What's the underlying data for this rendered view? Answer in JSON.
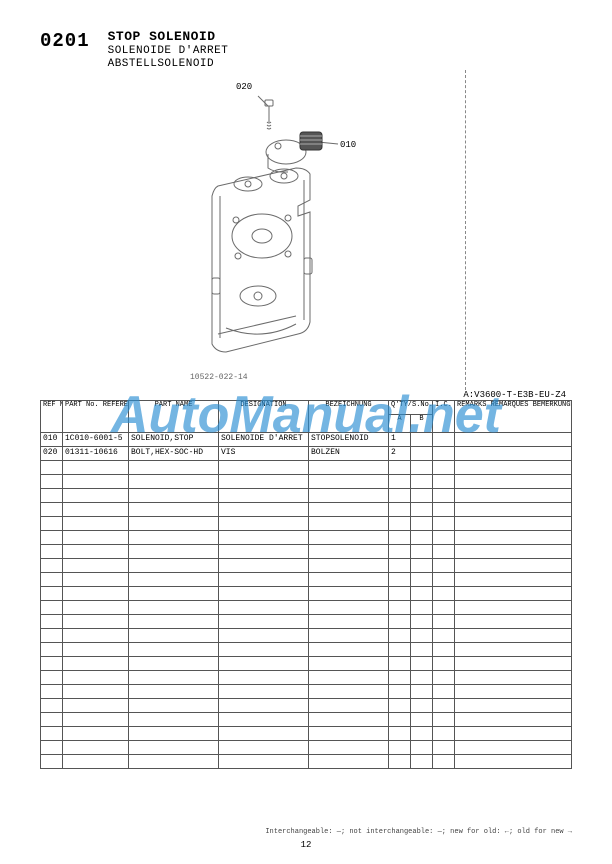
{
  "section_number": "0201",
  "titles": {
    "en": "STOP SOLENOID",
    "fr": "SOLENOIDE D'ARRET",
    "de": "ABSTELLSOLENOID"
  },
  "callouts": {
    "c020": "020",
    "c010": "010"
  },
  "figure_id": "10522-022-14",
  "model_code": "A:V3600-T-E3B-EU-Z4",
  "headers": {
    "ref": "REF No.\nPOS.No.\nBILD-Nr.",
    "partno": "PART No.\nREFERENCE\nBESELL-Nr.",
    "partname": "PART NAME",
    "desig": "DESIGNATION",
    "bez": "BEZEICHNUNG",
    "qty_group": "Q'TY/S.No.\nQ.TE/No.S.\nSTUECK/S.Nr.",
    "qa": "A",
    "qb": "B",
    "ic": "I.C.",
    "remarks": "REMARKS\nREMARQUES\nBEMERKUNGEN"
  },
  "rows": [
    {
      "ref": "010",
      "partno": "1C010-6001-5",
      "name": "SOLENOID,STOP",
      "desig": "SOLENOIDE D'ARRET",
      "bez": "STOPSOLENOID",
      "qa": "1",
      "qb": "",
      "ic": "",
      "rem": ""
    },
    {
      "ref": "020",
      "partno": "01311-10616",
      "name": "BOLT,HEX-SOC-HD",
      "desig": "VIS",
      "bez": "BOLZEN",
      "qa": "2",
      "qb": "",
      "ic": "",
      "rem": ""
    }
  ],
  "empty_rows": 22,
  "watermark": "AutoManual.net",
  "footnote": "Interchangeable: —; not interchangeable: —; new for old: ←; old for new →",
  "page_number": "12",
  "figure_stroke": "#6b6b6b"
}
